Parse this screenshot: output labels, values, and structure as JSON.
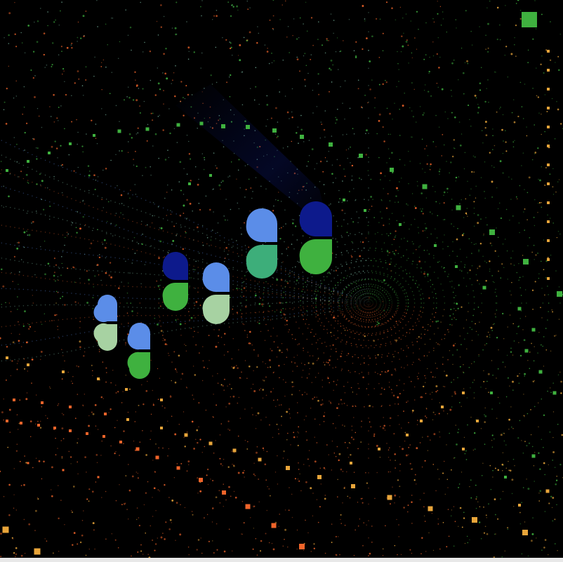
{
  "palette": {
    "background": "#000000",
    "bottom_strip": "#e8e8e8",
    "green": "#3fb13f",
    "orange": "#f0642a",
    "amber": "#e8a53a",
    "light_blue": "#5b8de8",
    "navy": "#0d1a8c",
    "teal": "#3dae7a",
    "sage": "#a7d2a2",
    "mint": "#86c9b0"
  },
  "scene": {
    "description_type": "abstract generative particle tunnel",
    "vanishing_point": "center-right",
    "tiles": [
      {
        "top_color": "light_blue",
        "bottom_color": "teal"
      },
      {
        "top_color": "navy",
        "bottom_color": "green"
      },
      {
        "top_color": "navy",
        "bottom_color": "green"
      },
      {
        "top_color": "light_blue",
        "bottom_color": "sage"
      },
      {
        "top_color": "light_blue",
        "bottom_color": "sage"
      },
      {
        "top_color": "light_blue",
        "bottom_color": "green"
      }
    ]
  }
}
